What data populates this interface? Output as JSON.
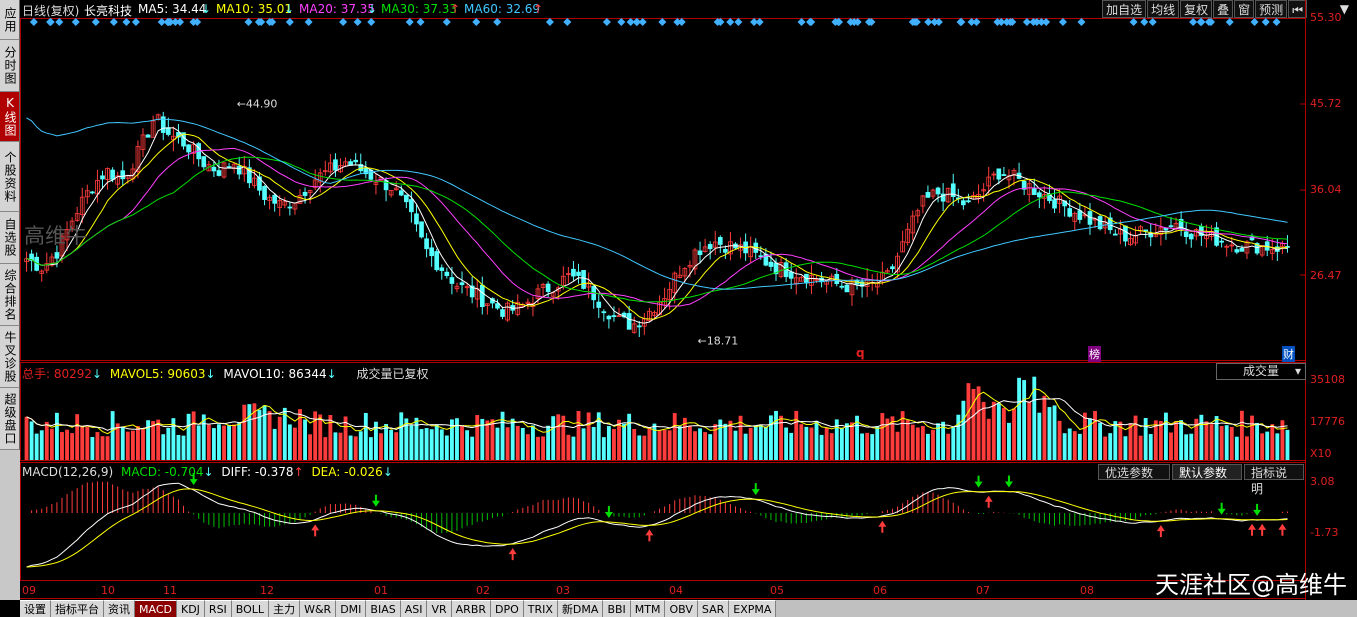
{
  "sidebar": [
    {
      "label": "应用",
      "active": false
    },
    {
      "label": "分时图",
      "active": false
    },
    {
      "label": "K线图",
      "active": true
    },
    {
      "label": "个股资料",
      "active": false
    },
    {
      "label": "自选股",
      "active": false
    },
    {
      "label": "综合排名",
      "active": false
    },
    {
      "label": "牛叉诊股",
      "active": false
    },
    {
      "label": "超级盘口",
      "active": false
    }
  ],
  "header": {
    "period": "日线(复权)",
    "stock": "长亮科技",
    "ma5": "MA5: 34.44",
    "ma10": "MA10: 35.01",
    "ma20": "MA20: 37.35",
    "ma30": "MA30: 37.33",
    "ma60": "MA60: 32.69",
    "buttons": [
      "加自选",
      "均线",
      "复权",
      "叠",
      "窗",
      "预测"
    ],
    "nav_icon": "first-page-icon",
    "menu_icon": "dropdown-icon"
  },
  "volume_header": {
    "total": "总手: 80292",
    "mavol5": "MAVOL5: 90603",
    "mavol10": "MAVOL10: 86344",
    "note": "成交量已复权",
    "select": "成交量"
  },
  "macd_header": {
    "name": "MACD(12,26,9)",
    "macd": "MACD: -0.704",
    "diff": "DIFF: -0.378",
    "dea": "DEA: -0.026",
    "buttons": [
      "优选参数",
      "默认参数",
      "指标说明"
    ]
  },
  "brand": "高维牛",
  "watermark": "天涯社区@高维牛",
  "markers": {
    "q": "q",
    "bang": "榜",
    "cai": "财"
  },
  "tabs": [
    "设置",
    "指标平台",
    "资讯",
    "MACD",
    "KDJ",
    "RSI",
    "BOLL",
    "主力",
    "W&R",
    "DMI",
    "BIAS",
    "ASI",
    "VR",
    "ARBR",
    "DPO",
    "TRIX",
    "新DMA",
    "BBI",
    "MTM",
    "OBV",
    "SAR",
    "EXPMA"
  ],
  "active_tab": "MACD",
  "colors": {
    "up": "#ff3c3c",
    "down": "#54ffff",
    "ma5": "#ffffff",
    "ma10": "#ffff00",
    "ma20": "#ff40ff",
    "ma30": "#00e000",
    "ma60": "#40c8ff",
    "accent": "#e02020"
  },
  "chart_data": [
    {
      "type": "candlestick",
      "name": "price",
      "yticks": [
        "55.30",
        "45.72",
        "36.04",
        "26.47"
      ],
      "ylim": [
        16.5,
        55.3
      ],
      "xticks": [
        "09",
        "10",
        "11",
        "12",
        "01",
        "02",
        "03",
        "04",
        "05",
        "06",
        "07",
        "08"
      ],
      "annotations": [
        {
          "label": "44.90",
          "value": 44.9
        },
        {
          "label": "18.71",
          "value": 18.71
        }
      ],
      "close_path": [
        28,
        27,
        29,
        33,
        36,
        38,
        37,
        40,
        44,
        42,
        41,
        39,
        38,
        39,
        37,
        35,
        34,
        35,
        37,
        38,
        39,
        38,
        37,
        36,
        33,
        29,
        27,
        25,
        24,
        23,
        22,
        22.5,
        24,
        25,
        26,
        25,
        23,
        21,
        20.5,
        22,
        24,
        27,
        29,
        30,
        29.5,
        29,
        28,
        27,
        26.5,
        26,
        25.5,
        25,
        24.8,
        25,
        26,
        30,
        34,
        35.5,
        35,
        34,
        36,
        38,
        37,
        36,
        35,
        34,
        33,
        32,
        31,
        30.5,
        31,
        31.5,
        32,
        31,
        30.5,
        30,
        29.5,
        29.5,
        29.3,
        29.3
      ]
    },
    {
      "type": "bar",
      "name": "volume",
      "yticks": [
        "35108",
        "17776",
        "X10"
      ]
    },
    {
      "type": "bar",
      "name": "macd",
      "yticks": [
        "3.08",
        "-1.73"
      ]
    }
  ]
}
